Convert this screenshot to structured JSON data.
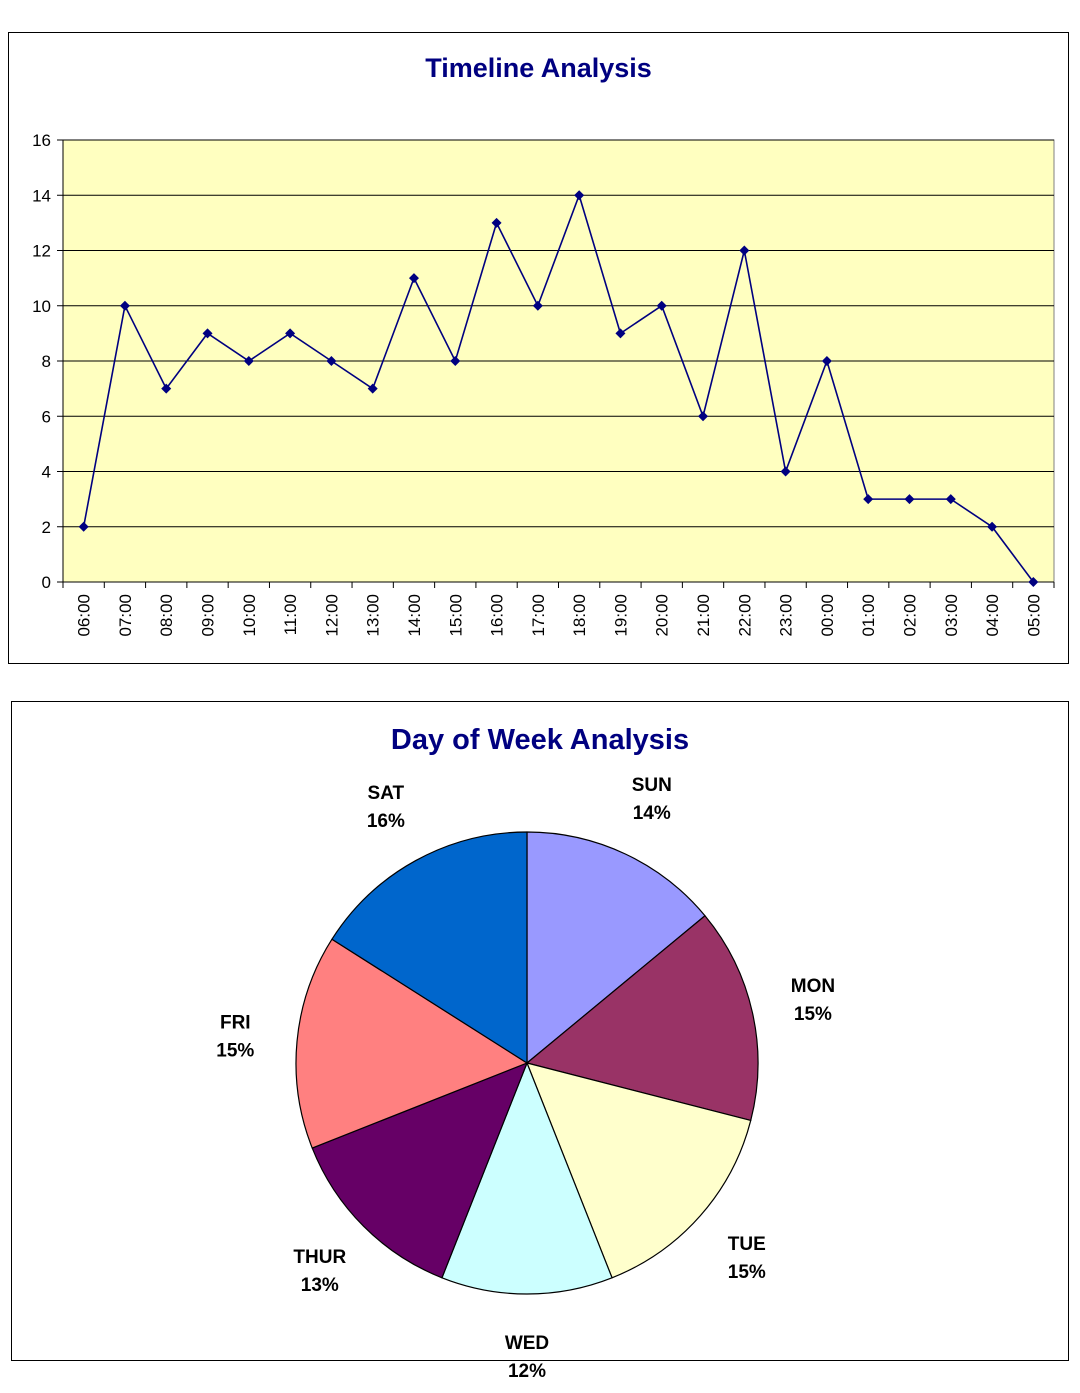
{
  "chart_data": [
    {
      "type": "line",
      "title": "Timeline Analysis",
      "xlabel": "",
      "ylabel": "",
      "ylim": [
        0,
        16
      ],
      "yticks": [
        "0",
        "2",
        "4",
        "6",
        "8",
        "10",
        "12",
        "14",
        "16"
      ],
      "categories": [
        "06:00",
        "07:00",
        "08:00",
        "09:00",
        "10:00",
        "11:00",
        "12:00",
        "13:00",
        "14:00",
        "15:00",
        "16:00",
        "17:00",
        "18:00",
        "19:00",
        "20:00",
        "21:00",
        "22:00",
        "23:00",
        "00:00",
        "01:00",
        "02:00",
        "03:00",
        "04:00",
        "05:00"
      ],
      "values": [
        2,
        10,
        7,
        9,
        8,
        9,
        8,
        7,
        11,
        8,
        13,
        10,
        14,
        9,
        10,
        6,
        12,
        4,
        8,
        3,
        3,
        3,
        2,
        0
      ],
      "grid": true,
      "legend": "none",
      "colors": {
        "line": "#000080",
        "marker": "#000080",
        "plot_bg": "#FFFFC0",
        "grid": "#000000"
      }
    },
    {
      "type": "pie",
      "title": "Day of Week Analysis",
      "slices": [
        {
          "label": "SUN",
          "percent": "14%",
          "value": 14,
          "color": "#9999FF"
        },
        {
          "label": "MON",
          "percent": "15%",
          "value": 15,
          "color": "#993366"
        },
        {
          "label": "TUE",
          "percent": "15%",
          "value": 15,
          "color": "#FFFFCC"
        },
        {
          "label": "WED",
          "percent": "12%",
          "value": 12,
          "color": "#CCFFFF"
        },
        {
          "label": "THUR",
          "percent": "13%",
          "value": 13,
          "color": "#660066"
        },
        {
          "label": "FRI",
          "percent": "15%",
          "value": 15,
          "color": "#FF8080"
        },
        {
          "label": "SAT",
          "percent": "16%",
          "value": 16,
          "color": "#0066CC"
        }
      ],
      "legend": "none"
    }
  ]
}
